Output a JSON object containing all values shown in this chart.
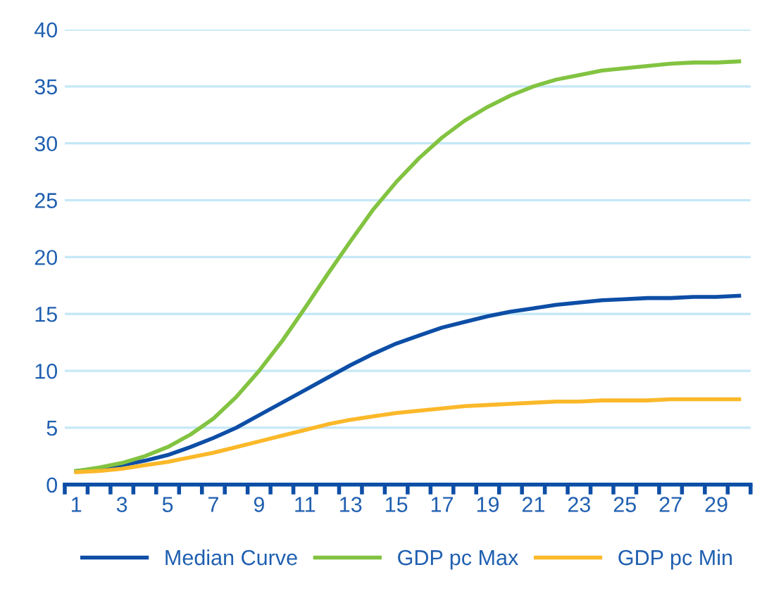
{
  "chart_data": {
    "type": "line",
    "categories": [
      "1",
      null,
      "3",
      null,
      "5",
      null,
      "7",
      null,
      "9",
      null,
      "11",
      null,
      "13",
      null,
      "15",
      null,
      "17",
      null,
      "19",
      null,
      "21",
      null,
      "23",
      null,
      "25",
      null,
      "27",
      null,
      "29",
      null
    ],
    "series": [
      {
        "name": "Median Curve",
        "color": "#0d4ea6",
        "values": [
          1.2,
          1.4,
          1.7,
          2.1,
          2.6,
          3.3,
          4.1,
          5.0,
          6.1,
          7.2,
          8.3,
          9.4,
          10.5,
          11.5,
          12.4,
          13.1,
          13.8,
          14.3,
          14.8,
          15.2,
          15.5,
          15.8,
          16.0,
          16.2,
          16.3,
          16.4,
          16.4,
          16.5,
          16.5,
          16.6
        ]
      },
      {
        "name": "GDP pc Max",
        "color": "#82c341",
        "values": [
          1.2,
          1.5,
          1.9,
          2.5,
          3.3,
          4.4,
          5.8,
          7.7,
          10.0,
          12.6,
          15.5,
          18.5,
          21.4,
          24.2,
          26.6,
          28.7,
          30.5,
          32.0,
          33.2,
          34.2,
          35.0,
          35.6,
          36.0,
          36.4,
          36.6,
          36.8,
          37.0,
          37.1,
          37.1,
          37.2
        ]
      },
      {
        "name": "GDP pc Min",
        "color": "#fbb829",
        "values": [
          1.1,
          1.2,
          1.4,
          1.7,
          2.0,
          2.4,
          2.8,
          3.3,
          3.8,
          4.3,
          4.8,
          5.3,
          5.7,
          6.0,
          6.3,
          6.5,
          6.7,
          6.9,
          7.0,
          7.1,
          7.2,
          7.3,
          7.3,
          7.4,
          7.4,
          7.4,
          7.5,
          7.5,
          7.5,
          7.5
        ]
      }
    ],
    "ylim": [
      0,
      40
    ],
    "yticks": [
      0,
      5,
      10,
      15,
      20,
      25,
      30,
      35,
      40
    ],
    "grid": "y",
    "legend": "bottom",
    "marker": "none",
    "line_style": "solid"
  }
}
